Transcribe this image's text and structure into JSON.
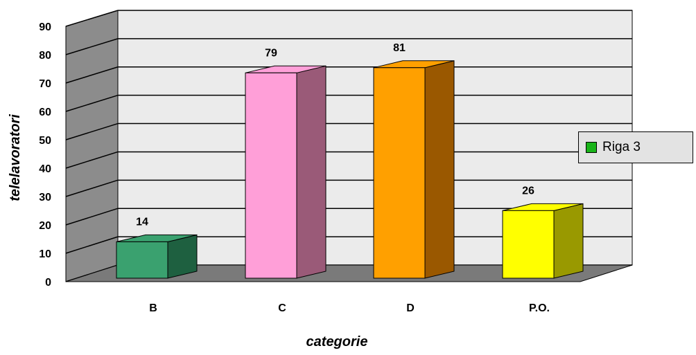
{
  "chart_data": {
    "type": "bar",
    "title": "",
    "categories": [
      "B",
      "C",
      "D",
      "P.O."
    ],
    "series": [
      {
        "name": "Riga 3",
        "values": [
          14,
          79,
          81,
          26
        ]
      }
    ],
    "bar_colors": [
      "#3aa16f",
      "#ff9fd8",
      "#ffa000",
      "#ffff00"
    ],
    "bar_side_colors": [
      "#1e6040",
      "#9a5a78",
      "#9a5800",
      "#999900"
    ],
    "xlabel": "categorie",
    "ylabel": "telelavoratori",
    "ylim": [
      0,
      90
    ],
    "yticks": [
      0,
      10,
      20,
      30,
      40,
      50,
      60,
      70,
      80,
      90
    ],
    "grid": true,
    "legend_position": "right",
    "legend_swatch_color": "#19b419",
    "wall_color": "#ebebeb",
    "side_wall_color": "#8c8c8c",
    "floor_color": "#7a7a7a"
  }
}
